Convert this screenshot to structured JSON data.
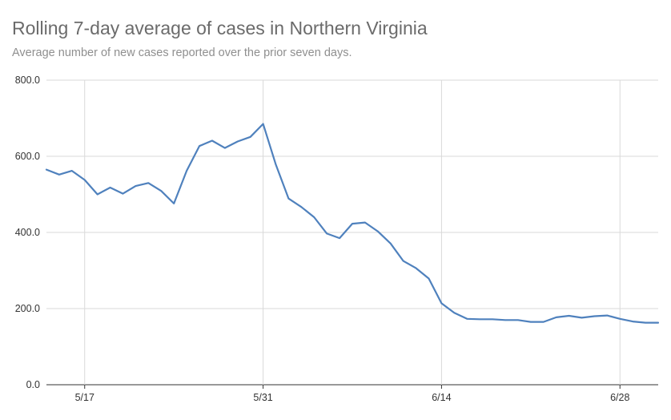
{
  "page": {
    "title": "Rolling 7-day average of cases in Northern Virginia",
    "subtitle": "Average number of new cases reported over the prior seven days."
  },
  "chart_data": {
    "type": "line",
    "title": "Rolling 7-day average of cases in Northern Virginia",
    "subtitle": "Average number of new cases reported over the prior seven days.",
    "xlabel": "",
    "ylabel": "",
    "ylim": [
      0,
      800
    ],
    "yticks": [
      0,
      200,
      400,
      600,
      800
    ],
    "ytick_labels": [
      "0.0",
      "200.0",
      "400.0",
      "600.0",
      "800.0"
    ],
    "xlim": [
      "2020-05-14",
      "2020-07-01"
    ],
    "xticks": [
      "2020-05-17",
      "2020-05-31",
      "2020-06-14",
      "2020-06-28"
    ],
    "xtick_labels": [
      "5/17",
      "5/31",
      "6/14",
      "6/28"
    ],
    "grid": true,
    "line_color": "#4f81bd",
    "series": [
      {
        "x": [
          "2020-05-14",
          "2020-05-15",
          "2020-05-16",
          "2020-05-17",
          "2020-05-18",
          "2020-05-19",
          "2020-05-20",
          "2020-05-21",
          "2020-05-22",
          "2020-05-23",
          "2020-05-24",
          "2020-05-25",
          "2020-05-26",
          "2020-05-27",
          "2020-05-28",
          "2020-05-29",
          "2020-05-30",
          "2020-05-31",
          "2020-06-01",
          "2020-06-02",
          "2020-06-03",
          "2020-06-04",
          "2020-06-05",
          "2020-06-06",
          "2020-06-07",
          "2020-06-08",
          "2020-06-09",
          "2020-06-10",
          "2020-06-11",
          "2020-06-12",
          "2020-06-13",
          "2020-06-14",
          "2020-06-15",
          "2020-06-16",
          "2020-06-17",
          "2020-06-18",
          "2020-06-19",
          "2020-06-20",
          "2020-06-21",
          "2020-06-22",
          "2020-06-23",
          "2020-06-24",
          "2020-06-25",
          "2020-06-26",
          "2020-06-27",
          "2020-06-28",
          "2020-06-29",
          "2020-06-30",
          "2020-07-01"
        ],
        "values": [
          565,
          552,
          562,
          538,
          500,
          518,
          502,
          522,
          530,
          509,
          476,
          562,
          627,
          641,
          622,
          639,
          651,
          685,
          578,
          489,
          467,
          440,
          397,
          385,
          423,
          426,
          403,
          371,
          325,
          306,
          279,
          214,
          189,
          173,
          172,
          172,
          170,
          170,
          165,
          165,
          177,
          181,
          176,
          180,
          182,
          173,
          166,
          163,
          163
        ]
      }
    ]
  }
}
